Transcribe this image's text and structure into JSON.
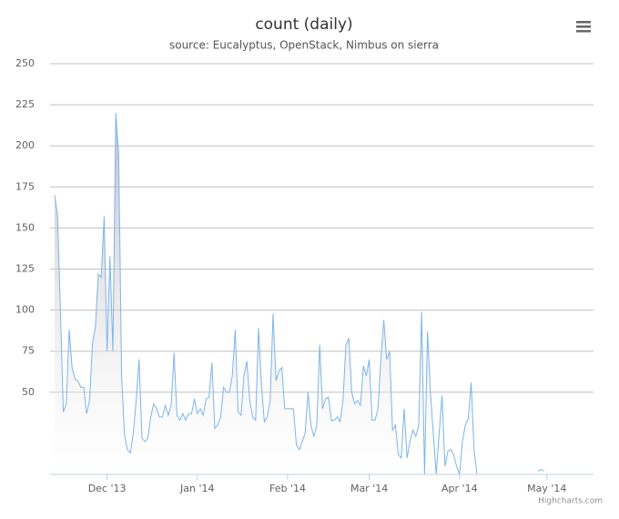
{
  "chart_data": {
    "type": "area",
    "title": "count (daily)",
    "subtitle": "source: Eucalyptus, OpenStack, Nimbus on sierra",
    "credits": "Highcharts.com",
    "color": "#7cb5ec",
    "values": [
      170,
      158,
      100,
      38,
      43,
      88,
      65,
      58,
      57,
      53,
      53,
      37,
      45,
      80,
      90,
      122,
      120,
      157,
      75,
      133,
      75,
      220,
      195,
      60,
      24,
      15,
      13,
      25,
      45,
      70,
      22,
      20,
      22,
      35,
      43,
      40,
      35,
      35,
      42,
      36,
      42,
      74,
      36,
      33,
      37,
      33,
      37,
      37,
      46,
      37,
      40,
      36,
      46,
      47,
      68,
      28,
      30,
      35,
      53,
      50,
      50,
      60,
      88,
      38,
      36,
      60,
      69,
      45,
      35,
      33,
      89,
      55,
      32,
      35,
      45,
      98,
      57,
      63,
      65,
      40,
      40,
      40,
      40,
      18,
      15,
      20,
      25,
      50,
      30,
      23,
      30,
      79,
      40,
      46,
      47,
      33,
      33,
      35,
      32,
      45,
      79,
      83,
      50,
      43,
      45,
      42,
      66,
      60,
      70,
      33,
      33,
      40,
      70,
      94,
      70,
      75,
      27,
      30,
      12,
      10,
      40,
      10,
      20,
      27,
      23,
      30,
      99,
      0,
      87,
      50,
      25,
      0,
      25,
      48,
      5,
      14,
      15,
      12,
      5,
      0,
      20,
      30,
      34,
      56,
      15,
      0,
      null,
      null,
      null,
      null,
      null,
      null,
      null,
      null,
      null,
      null,
      null,
      null,
      null,
      null,
      null,
      null,
      null,
      null,
      null,
      null,
      2,
      3,
      2
    ],
    "xlim": [
      0,
      185
    ],
    "xticks": [
      {
        "value": 18,
        "label": "Dec '13"
      },
      {
        "value": 49,
        "label": "Jan '14"
      },
      {
        "value": 80,
        "label": "Feb '14"
      },
      {
        "value": 108,
        "label": "Mar '14"
      },
      {
        "value": 139,
        "label": "Apr '14"
      },
      {
        "value": 169,
        "label": "May '14"
      }
    ],
    "ylim": [
      0,
      250
    ],
    "yticks": [
      50,
      75,
      100,
      125,
      150,
      175,
      200,
      225,
      250
    ],
    "grid": true
  }
}
